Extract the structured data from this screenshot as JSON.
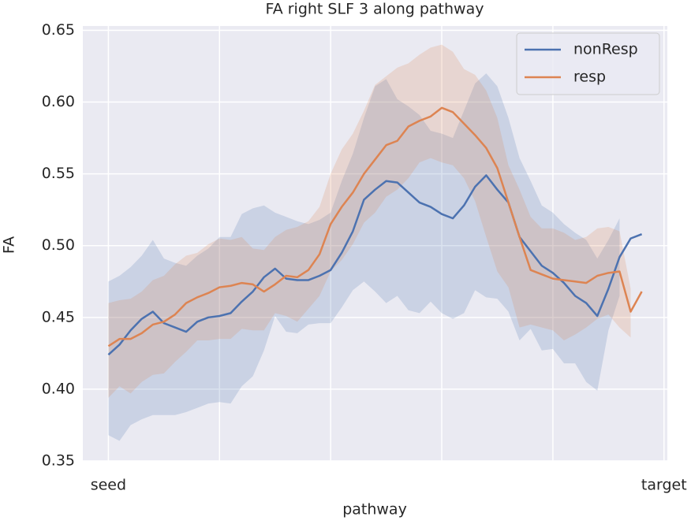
{
  "chart_data": {
    "type": "line",
    "title": "FA right SLF 3 along pathway",
    "xlabel": "pathway",
    "ylabel": "FA",
    "x": [
      0,
      2,
      4,
      6,
      8,
      10,
      12,
      14,
      16,
      18,
      20,
      22,
      24,
      26,
      28,
      30,
      32,
      34,
      36,
      38,
      40,
      42,
      44,
      46,
      48,
      50,
      52,
      54,
      56,
      58,
      60,
      62,
      64,
      66,
      68,
      70,
      72,
      74,
      76,
      78,
      80,
      82,
      84,
      86,
      88,
      90,
      92,
      94,
      96
    ],
    "series": [
      {
        "name": "nonResp",
        "color": "#4c72b0",
        "values": [
          0.424,
          0.431,
          0.441,
          0.449,
          0.454,
          0.446,
          0.443,
          0.44,
          0.447,
          0.45,
          0.451,
          0.453,
          0.461,
          0.468,
          0.478,
          0.484,
          0.477,
          0.476,
          0.476,
          0.479,
          0.483,
          0.495,
          0.51,
          0.532,
          0.539,
          0.545,
          0.544,
          0.537,
          0.53,
          0.527,
          0.522,
          0.519,
          0.528,
          0.541,
          0.549,
          0.539,
          0.53,
          0.506,
          0.496,
          0.486,
          0.481,
          0.474,
          0.465,
          0.46,
          0.451,
          0.47,
          0.492,
          0.505,
          0.508
        ],
        "lower": [
          0.368,
          0.364,
          0.375,
          0.379,
          0.382,
          0.382,
          0.382,
          0.384,
          0.387,
          0.39,
          0.391,
          0.39,
          0.402,
          0.409,
          0.427,
          0.451,
          0.44,
          0.439,
          0.445,
          0.446,
          0.446,
          0.457,
          0.469,
          0.475,
          0.468,
          0.46,
          0.465,
          0.455,
          0.453,
          0.461,
          0.453,
          0.449,
          0.453,
          0.469,
          0.464,
          0.463,
          0.454,
          0.434,
          0.442,
          0.427,
          0.428,
          0.418,
          0.418,
          0.405,
          0.399,
          0.441,
          0.465,
          null,
          null
        ],
        "upper": [
          0.475,
          0.479,
          0.485,
          0.493,
          0.504,
          0.491,
          0.488,
          0.486,
          0.493,
          0.498,
          0.506,
          0.506,
          0.522,
          0.526,
          0.528,
          0.523,
          0.52,
          0.517,
          0.515,
          0.518,
          0.523,
          0.545,
          0.564,
          0.589,
          0.611,
          0.616,
          0.602,
          0.597,
          0.591,
          0.58,
          0.578,
          0.575,
          0.594,
          0.613,
          0.62,
          0.611,
          0.589,
          0.561,
          0.545,
          0.528,
          0.523,
          0.515,
          0.509,
          0.504,
          0.491,
          0.504,
          0.519,
          null,
          null
        ]
      },
      {
        "name": "resp",
        "color": "#dd8452",
        "values": [
          0.43,
          0.435,
          0.435,
          0.439,
          0.445,
          0.447,
          0.452,
          0.46,
          0.464,
          0.467,
          0.471,
          0.472,
          0.474,
          0.473,
          0.468,
          0.473,
          0.479,
          0.478,
          0.483,
          0.494,
          0.515,
          0.527,
          0.537,
          0.55,
          0.56,
          0.57,
          0.573,
          0.583,
          0.587,
          0.59,
          0.596,
          0.593,
          0.585,
          0.577,
          0.568,
          0.554,
          0.53,
          0.506,
          0.483,
          0.48,
          0.477,
          0.476,
          0.475,
          0.474,
          0.479,
          0.481,
          0.482,
          0.454,
          0.468
        ],
        "lower": [
          0.394,
          0.402,
          0.397,
          0.405,
          0.41,
          0.411,
          0.419,
          0.426,
          0.434,
          0.434,
          0.435,
          0.435,
          0.442,
          0.441,
          0.441,
          0.453,
          0.451,
          0.447,
          0.456,
          0.465,
          0.482,
          0.49,
          0.501,
          0.516,
          0.523,
          0.534,
          0.539,
          0.547,
          0.558,
          0.561,
          0.558,
          0.556,
          0.547,
          0.531,
          0.506,
          0.482,
          0.471,
          0.443,
          0.445,
          0.443,
          0.441,
          0.434,
          0.438,
          0.443,
          0.449,
          0.452,
          0.443,
          0.436,
          null
        ],
        "upper": [
          0.46,
          0.462,
          0.463,
          0.468,
          0.476,
          0.479,
          0.487,
          0.493,
          0.495,
          0.501,
          0.505,
          0.504,
          0.506,
          0.498,
          0.497,
          0.506,
          0.511,
          0.513,
          0.517,
          0.527,
          0.55,
          0.567,
          0.578,
          0.594,
          0.612,
          0.618,
          0.624,
          0.627,
          0.633,
          0.638,
          0.64,
          0.635,
          0.623,
          0.619,
          0.608,
          0.589,
          0.556,
          0.539,
          0.52,
          0.512,
          0.512,
          0.509,
          0.504,
          0.506,
          0.512,
          0.513,
          0.51,
          0.47,
          null
        ]
      }
    ],
    "xlim": [
      -4.6,
      100.6
    ],
    "ylim": [
      0.35,
      0.653
    ],
    "xticks": [
      {
        "value": 0,
        "label": "seed"
      },
      {
        "value": 100,
        "label": "target"
      }
    ],
    "xgrid": [
      0,
      20,
      40,
      60,
      80,
      100
    ],
    "yticks": [
      0.35,
      {
        "value": 0.4,
        "label": "0.40"
      },
      0.45,
      {
        "value": 0.5,
        "label": "0.50"
      },
      0.55,
      {
        "value": 0.6,
        "label": "0.60"
      },
      0.65
    ],
    "grid": true,
    "legend": "upper right"
  }
}
